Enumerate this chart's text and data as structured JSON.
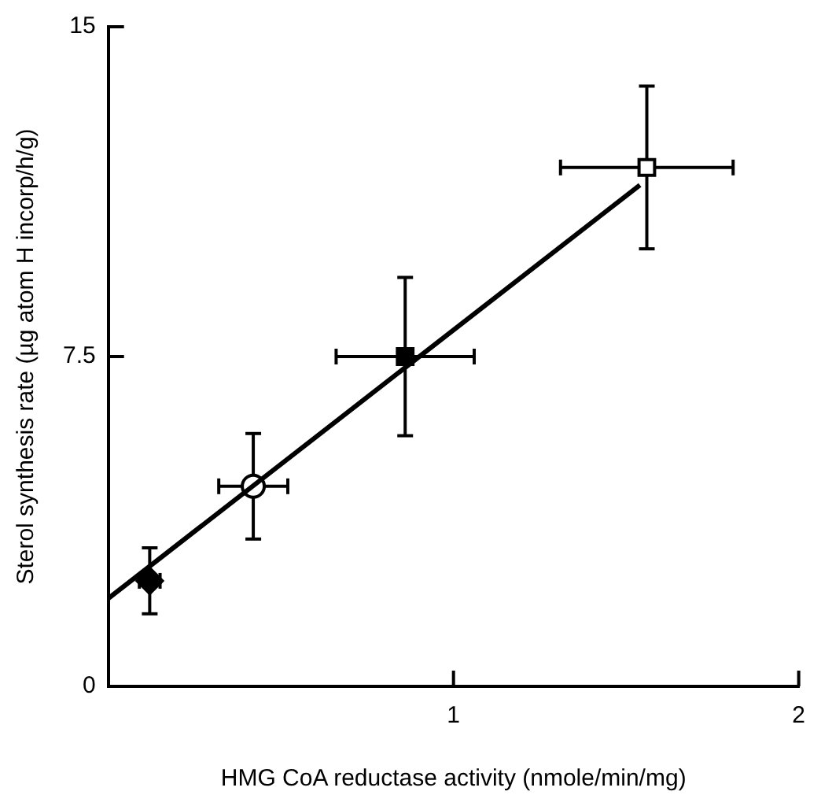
{
  "chart_data": {
    "type": "scatter",
    "xlabel": "HMG CoA reductase activity (nmole/min/mg)",
    "ylabel": "Sterol synthesis rate (µg atom H incorp/h/g)",
    "xlim": [
      0,
      2
    ],
    "xticks": [
      1,
      2
    ],
    "ylim": [
      0,
      15
    ],
    "yticks": [
      0,
      7.5,
      15
    ],
    "grid": false,
    "legend": false,
    "series": [
      {
        "type": "line",
        "color": "#000000",
        "x": [
          0,
          1.54
        ],
        "values": [
          2.0,
          11.4
        ],
        "marker": "none",
        "line_style": "solid"
      },
      {
        "color": "#000000",
        "marker": "diamond",
        "x": [
          0.12
        ],
        "values": [
          2.4
        ],
        "errors": [
          0.75
        ],
        "xerrors": [
          0.03
        ]
      },
      {
        "color": "#ffffff",
        "marker": "circle",
        "x": [
          0.42
        ],
        "values": [
          4.55
        ],
        "errors": [
          1.2
        ],
        "xerrors": [
          0.1
        ]
      },
      {
        "color": "#000000",
        "marker": "square",
        "x": [
          0.86
        ],
        "values": [
          7.5
        ],
        "errors": [
          1.8
        ],
        "xerrors": [
          0.2
        ]
      },
      {
        "color": "#ffffff",
        "marker": "square",
        "x": [
          1.56
        ],
        "values": [
          11.8
        ],
        "errors": [
          1.85
        ],
        "xerrors": [
          0.25
        ]
      }
    ]
  }
}
